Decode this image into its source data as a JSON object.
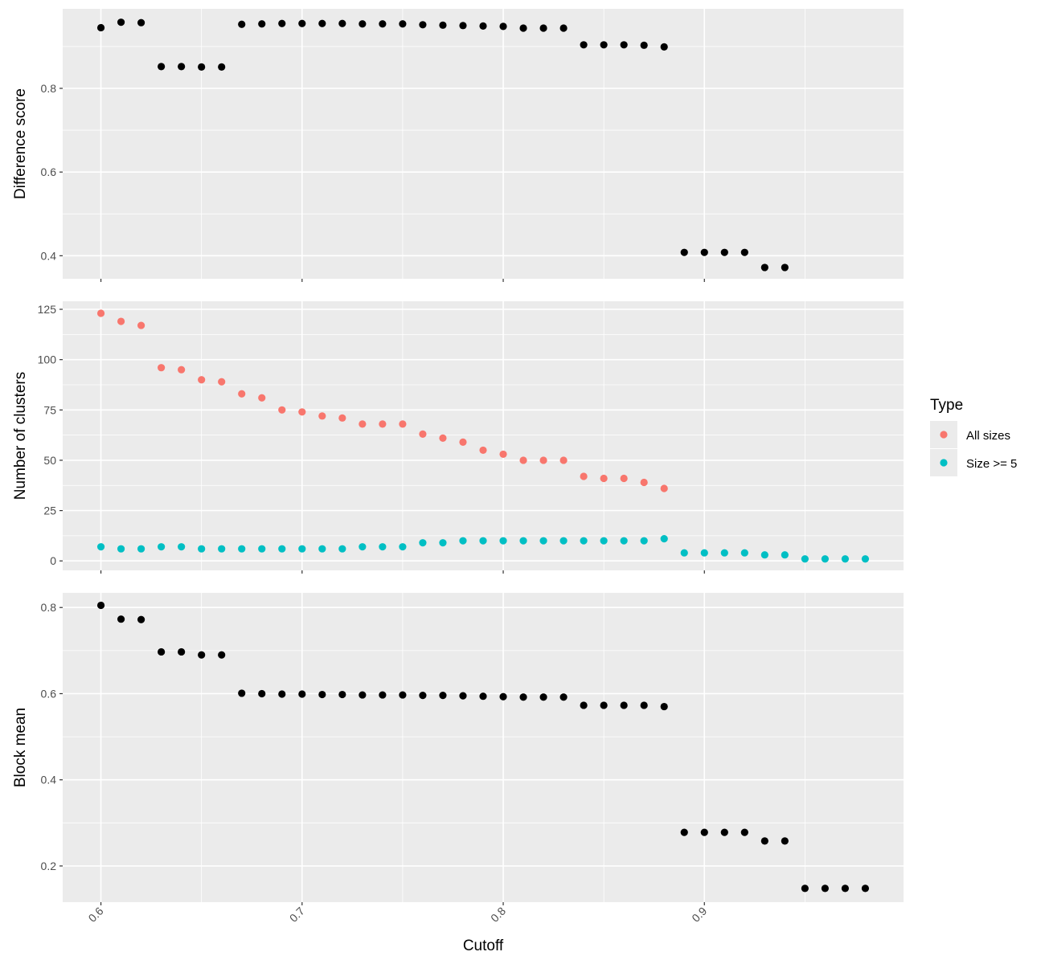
{
  "chart_data": {
    "type": "scatter",
    "xlabel": "Cutoff",
    "x_ticks": [
      0.6,
      0.7,
      0.8,
      0.9
    ],
    "x_tick_labels": [
      "0.6",
      "0.7",
      "0.8",
      "0.9"
    ],
    "xlim": [
      0.581,
      0.999
    ],
    "x": [
      0.6,
      0.61,
      0.62,
      0.63,
      0.64,
      0.65,
      0.66,
      0.67,
      0.68,
      0.69,
      0.7,
      0.71,
      0.72,
      0.73,
      0.74,
      0.75,
      0.76,
      0.77,
      0.78,
      0.79,
      0.8,
      0.81,
      0.82,
      0.83,
      0.84,
      0.85,
      0.86,
      0.87,
      0.88,
      0.89,
      0.9,
      0.91,
      0.92,
      0.93,
      0.94,
      0.95,
      0.96,
      0.97,
      0.98
    ],
    "grid": true,
    "panels": [
      {
        "ylabel": "Difference score",
        "ylim": [
          0.345,
          0.99
        ],
        "y_ticks": [
          0.4,
          0.6,
          0.8
        ],
        "y_tick_labels": [
          "0.4",
          "0.6",
          "0.8"
        ],
        "series": [
          {
            "color": "#000000",
            "values": [
              0.945,
              0.958,
              0.957,
              0.852,
              0.852,
              0.851,
              0.851,
              0.953,
              0.954,
              0.955,
              0.955,
              0.955,
              0.955,
              0.954,
              0.954,
              0.954,
              0.952,
              0.951,
              0.95,
              0.949,
              0.948,
              0.944,
              0.944,
              0.944,
              0.904,
              0.904,
              0.904,
              0.903,
              0.899,
              0.408,
              0.408,
              0.408,
              0.408,
              0.372,
              0.372,
              null,
              null,
              null,
              null
            ]
          }
        ]
      },
      {
        "ylabel": "Number of clusters",
        "ylim": [
          -4.7,
          129
        ],
        "y_ticks": [
          0,
          25,
          50,
          75,
          100,
          125
        ],
        "y_tick_labels": [
          "0",
          "25",
          "50",
          "75",
          "100",
          "125"
        ],
        "series": [
          {
            "name": "All sizes",
            "color": "#f8766d",
            "values": [
              123,
              119,
              117,
              96,
              95,
              90,
              89,
              83,
              81,
              75,
              74,
              72,
              71,
              68,
              68,
              68,
              63,
              61,
              59,
              55,
              53,
              50,
              50,
              50,
              42,
              41,
              41,
              39,
              36,
              null,
              null,
              null,
              null,
              null,
              null,
              null,
              null,
              null,
              null
            ]
          },
          {
            "name": "Size >= 5",
            "color": "#00bfc4",
            "values": [
              7,
              6,
              6,
              7,
              7,
              6,
              6,
              6,
              6,
              6,
              6,
              6,
              6,
              7,
              7,
              7,
              9,
              9,
              10,
              10,
              10,
              10,
              10,
              10,
              10,
              10,
              10,
              10,
              11,
              4,
              4,
              4,
              4,
              3,
              3,
              1,
              1,
              1,
              1
            ]
          }
        ]
      },
      {
        "ylabel": "Block mean",
        "ylim": [
          0.116,
          0.834
        ],
        "y_ticks": [
          0.2,
          0.4,
          0.6,
          0.8
        ],
        "y_tick_labels": [
          "0.2",
          "0.4",
          "0.6",
          "0.8"
        ],
        "series": [
          {
            "color": "#000000",
            "values": [
              0.805,
              0.773,
              0.772,
              0.697,
              0.697,
              0.69,
              0.69,
              0.601,
              0.6,
              0.599,
              0.599,
              0.598,
              0.598,
              0.597,
              0.597,
              0.597,
              0.596,
              0.596,
              0.595,
              0.594,
              0.593,
              0.592,
              0.592,
              0.592,
              0.573,
              0.573,
              0.573,
              0.573,
              0.57,
              0.278,
              0.278,
              0.278,
              0.278,
              0.258,
              0.258,
              0.148,
              0.148,
              0.148,
              0.148
            ]
          }
        ]
      }
    ],
    "legend": {
      "title": "Type",
      "placement": "right",
      "entries": [
        {
          "label": "All sizes",
          "color": "#f8766d"
        },
        {
          "label": "Size >= 5",
          "color": "#00bfc4"
        }
      ]
    }
  }
}
